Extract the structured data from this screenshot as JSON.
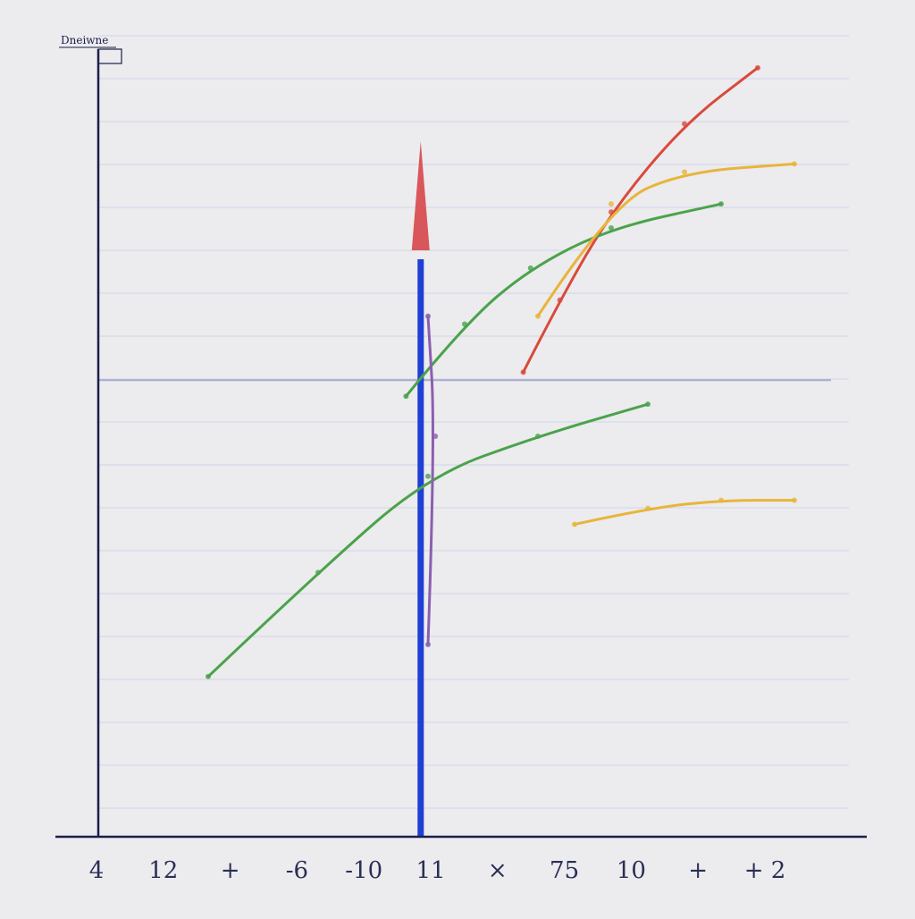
{
  "chart_data": {
    "type": "line",
    "title": "Dneiwne",
    "xlabel": "",
    "ylabel": "",
    "x_ticks": [
      "4",
      "12",
      "+",
      "-6",
      "-10",
      "11",
      "×",
      "75",
      "10",
      "+",
      "+ 2"
    ],
    "xlim": [
      0,
      10
    ],
    "ylim": [
      0,
      10
    ],
    "grid": true,
    "legend": "none",
    "series": [
      {
        "color": "#d94a3c",
        "points": [
          [
            5.8,
            5.8
          ],
          [
            6.3,
            6.7
          ],
          [
            7.0,
            7.8
          ],
          [
            8.0,
            8.9
          ],
          [
            9.0,
            9.6
          ]
        ]
      },
      {
        "color": "#4aa34a",
        "points": [
          [
            4.2,
            5.5
          ],
          [
            5.0,
            6.4
          ],
          [
            5.9,
            7.1
          ],
          [
            7.0,
            7.6
          ],
          [
            8.5,
            7.9
          ]
        ]
      },
      {
        "color": "#e8b53a",
        "points": [
          [
            6.0,
            6.5
          ],
          [
            7.0,
            7.9
          ],
          [
            8.0,
            8.3
          ],
          [
            9.5,
            8.4
          ]
        ]
      },
      {
        "color": "#4aa34a",
        "points": [
          [
            1.5,
            2.0
          ],
          [
            3.0,
            3.3
          ],
          [
            4.5,
            4.5
          ],
          [
            6.0,
            5.0
          ],
          [
            7.5,
            5.4
          ]
        ]
      },
      {
        "color": "#e8b53a",
        "points": [
          [
            6.5,
            3.9
          ],
          [
            7.5,
            4.1
          ],
          [
            8.5,
            4.2
          ],
          [
            9.5,
            4.2
          ]
        ]
      },
      {
        "color": "#8a5fb0",
        "points": [
          [
            4.5,
            2.4
          ],
          [
            4.6,
            5.0
          ],
          [
            4.5,
            6.5
          ]
        ]
      }
    ],
    "vertical_line": {
      "x": 4.4,
      "color": "#1f3fd6"
    },
    "horizontal_line": {
      "y": 5.7,
      "color": "#a7abce"
    },
    "colors": {
      "axis": "#1a1f4a",
      "grid": "#c8cde6",
      "background": "#ecebee"
    }
  }
}
